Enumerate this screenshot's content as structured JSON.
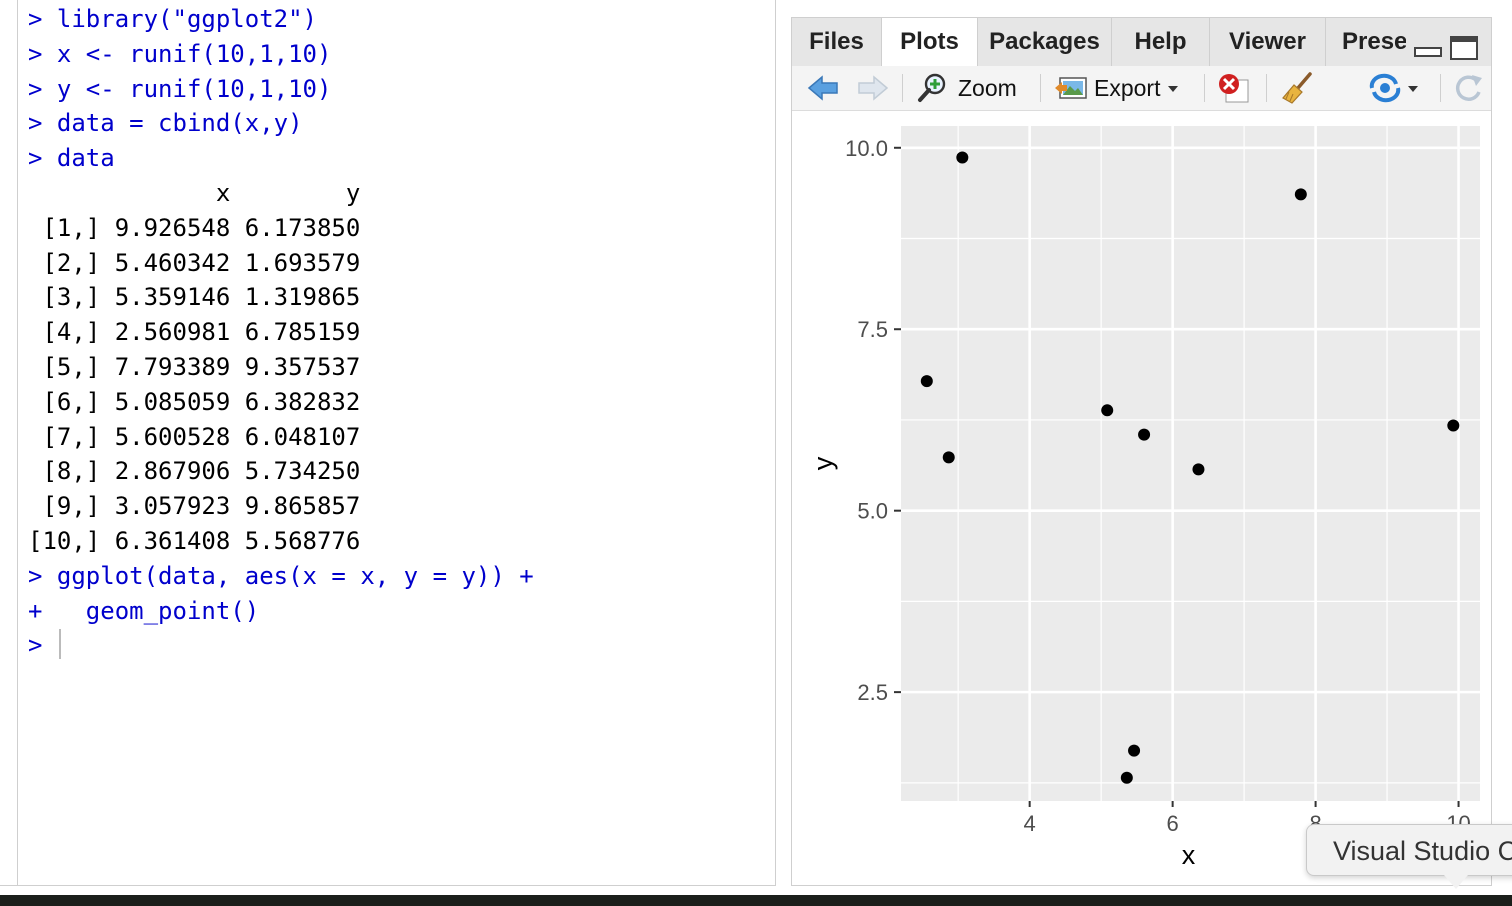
{
  "console": {
    "lines": [
      {
        "text": "> library(\"ggplot2\")",
        "kind": "cmd"
      },
      {
        "text": "> x <- runif(10,1,10)",
        "kind": "cmd"
      },
      {
        "text": "> y <- runif(10,1,10)",
        "kind": "cmd"
      },
      {
        "text": "> data = cbind(x,y)",
        "kind": "cmd"
      },
      {
        "text": "> data",
        "kind": "cmd"
      },
      {
        "text": "             x        y",
        "kind": "out"
      },
      {
        "text": " [1,] 9.926548 6.173850",
        "kind": "out"
      },
      {
        "text": " [2,] 5.460342 1.693579",
        "kind": "out"
      },
      {
        "text": " [3,] 5.359146 1.319865",
        "kind": "out"
      },
      {
        "text": " [4,] 2.560981 6.785159",
        "kind": "out"
      },
      {
        "text": " [5,] 7.793389 9.357537",
        "kind": "out"
      },
      {
        "text": " [6,] 5.085059 6.382832",
        "kind": "out"
      },
      {
        "text": " [7,] 5.600528 6.048107",
        "kind": "out"
      },
      {
        "text": " [8,] 2.867906 5.734250",
        "kind": "out"
      },
      {
        "text": " [9,] 3.057923 9.865857",
        "kind": "out"
      },
      {
        "text": "[10,] 6.361408 5.568776",
        "kind": "out"
      },
      {
        "text": "> ggplot(data, aes(x = x, y = y)) +",
        "kind": "cmd"
      },
      {
        "text": "+   geom_point()",
        "kind": "cmd"
      }
    ],
    "prompt": ">"
  },
  "tabs": [
    "Files",
    "Plots",
    "Packages",
    "Help",
    "Viewer",
    "Prese"
  ],
  "active_tab": "Plots",
  "toolbar": {
    "zoom_label": "Zoom",
    "export_label": "Export",
    "icons": [
      "back-arrow-icon",
      "forward-arrow-icon",
      "zoom-icon",
      "export-icon",
      "remove-plot-icon",
      "broom-icon",
      "publish-icon",
      "refresh-icon"
    ]
  },
  "chart_data": {
    "type": "scatter",
    "xlabel": "x",
    "ylabel": "y",
    "x_ticks": [
      "4",
      "6",
      "8",
      "10"
    ],
    "y_ticks": [
      "2.5",
      "5.0",
      "7.5",
      "10.0"
    ],
    "xlim": [
      2.2,
      10.3
    ],
    "ylim": [
      1.0,
      10.3
    ],
    "grid": true,
    "points": [
      {
        "x": 9.926548,
        "y": 6.17385
      },
      {
        "x": 5.460342,
        "y": 1.693579
      },
      {
        "x": 5.359146,
        "y": 1.319865
      },
      {
        "x": 2.560981,
        "y": 6.785159
      },
      {
        "x": 7.793389,
        "y": 9.357537
      },
      {
        "x": 5.085059,
        "y": 6.382832
      },
      {
        "x": 5.600528,
        "y": 6.048107
      },
      {
        "x": 2.867906,
        "y": 5.73425
      },
      {
        "x": 3.057923,
        "y": 9.865857
      },
      {
        "x": 6.361408,
        "y": 5.568776
      }
    ],
    "panel_color": "#ebebeb",
    "grid_color": "#ffffff",
    "point_color": "#000000"
  },
  "tooltip": {
    "text": "Visual Studio C"
  }
}
